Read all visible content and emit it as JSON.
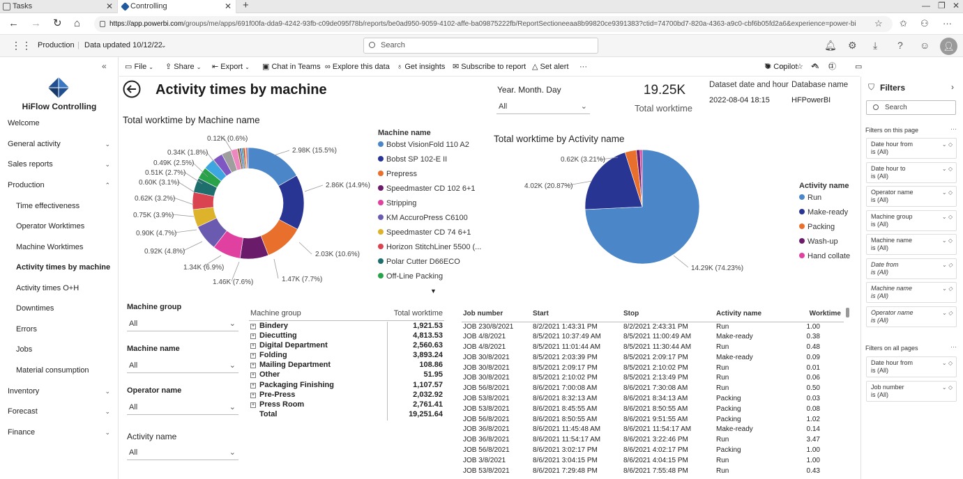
{
  "browser": {
    "tabs": [
      {
        "label": "Tasks",
        "close": "✕"
      },
      {
        "label": "Controlling",
        "close": "✕"
      }
    ],
    "new_tab": "+",
    "url_host": "https://app.powerbi.com",
    "url_path": "/groups/me/apps/691f00fa-dda9-4242-93fb-c09de095f78b/reports/be0ad950-9059-4102-affe-ba09875222fb/ReportSectioneeaa8b99820ce9391383?ctid=74700bd7-820a-4363-a9c0-cbf6b05fd2a6&experience=power-bi"
  },
  "header": {
    "workspace": "Production",
    "data_updated": "Data updated 10/12/22",
    "search_placeholder": "Search"
  },
  "sidebar": {
    "logo_text": "HiFlow Controlling",
    "items": [
      {
        "label": "Welcome"
      },
      {
        "label": "General activity",
        "chevron": "⌄"
      },
      {
        "label": "Sales reports",
        "chevron": "⌄"
      },
      {
        "label": "Production",
        "chevron": "⌃"
      },
      {
        "label": "Time effectiveness"
      },
      {
        "label": "Operator Worktimes"
      },
      {
        "label": "Machine Worktimes"
      },
      {
        "label": "Activity times by machine"
      },
      {
        "label": "Activity times O+H"
      },
      {
        "label": "Downtimes"
      },
      {
        "label": "Errors"
      },
      {
        "label": "Jobs"
      },
      {
        "label": "Material consumption"
      },
      {
        "label": "Inventory",
        "chevron": "⌄"
      },
      {
        "label": "Forecast",
        "chevron": "⌄"
      },
      {
        "label": "Finance",
        "chevron": "⌄"
      }
    ]
  },
  "toolbar": {
    "file": "File",
    "share": "Share",
    "export": "Export",
    "chat": "Chat in Teams",
    "explore": "Explore this data",
    "insights": "Get insights",
    "subscribe": "Subscribe to report",
    "alert": "Set alert",
    "more": "···",
    "copilot": "Copilot"
  },
  "report": {
    "title": "Activity times by machine",
    "date_slicer": {
      "label": "Year. Month. Day",
      "value": "All"
    },
    "kpi": {
      "value": "19.25K",
      "label": "Total worktime"
    },
    "dataset_info": {
      "headers": [
        "Dataset date and hour",
        "Database name"
      ],
      "values": [
        "2022-08-04 18:15",
        "HFPowerBI"
      ]
    },
    "donut_title": "Total worktime by Machine name",
    "donut_legend_title": "Machine name",
    "pie_title": "Total worktime by Activity name",
    "pie_legend_title": "Activity name",
    "slicers": [
      {
        "label": "Machine group",
        "value": "All"
      },
      {
        "label": "Machine name",
        "value": "All"
      },
      {
        "label": "Operator name",
        "value": "All"
      },
      {
        "label": "Activity name",
        "value": "All"
      }
    ],
    "machine_group_table": {
      "headers": [
        "Machine group",
        "Total worktime"
      ],
      "rows": [
        {
          "name": "Bindery",
          "value": "1,921.53"
        },
        {
          "name": "Diecutting",
          "value": "4,813.53"
        },
        {
          "name": "Digital Department",
          "value": "2,560.63"
        },
        {
          "name": "Folding",
          "value": "3,893.24"
        },
        {
          "name": "Mailing Department",
          "value": "108.86"
        },
        {
          "name": "Other",
          "value": "51.95"
        },
        {
          "name": "Packaging Finishing",
          "value": "1,107.57"
        },
        {
          "name": "Pre-Press",
          "value": "2,032.92"
        },
        {
          "name": "Press Room",
          "value": "2,761.41"
        }
      ],
      "total": {
        "name": "Total",
        "value": "19,251.64"
      }
    },
    "job_table": {
      "headers": [
        "Job number",
        "Start",
        "Stop",
        "Activity name",
        "Worktime"
      ],
      "rows": [
        [
          "JOB 230/8/2021",
          "8/2/2021 1:43:31 PM",
          "8/2/2021 2:43:31 PM",
          "Run",
          "1.00"
        ],
        [
          "JOB 4/8/2021",
          "8/5/2021 10:37:49 AM",
          "8/5/2021 11:00:49 AM",
          "Make-ready",
          "0.38"
        ],
        [
          "JOB 4/8/2021",
          "8/5/2021 11:01:44 AM",
          "8/5/2021 11:30:44 AM",
          "Run",
          "0.48"
        ],
        [
          "JOB 30/8/2021",
          "8/5/2021 2:03:39 PM",
          "8/5/2021 2:09:17 PM",
          "Make-ready",
          "0.09"
        ],
        [
          "JOB 30/8/2021",
          "8/5/2021 2:09:17 PM",
          "8/5/2021 2:10:02 PM",
          "Run",
          "0.01"
        ],
        [
          "JOB 30/8/2021",
          "8/5/2021 2:10:02 PM",
          "8/5/2021 2:13:49 PM",
          "Run",
          "0.06"
        ],
        [
          "JOB 56/8/2021",
          "8/6/2021 7:00:08 AM",
          "8/6/2021 7:30:08 AM",
          "Run",
          "0.50"
        ],
        [
          "JOB 53/8/2021",
          "8/6/2021 8:32:13 AM",
          "8/6/2021 8:34:13 AM",
          "Packing",
          "0.03"
        ],
        [
          "JOB 53/8/2021",
          "8/6/2021 8:45:55 AM",
          "8/6/2021 8:50:55 AM",
          "Packing",
          "0.08"
        ],
        [
          "JOB 56/8/2021",
          "8/6/2021 8:50:55 AM",
          "8/6/2021 9:51:55 AM",
          "Packing",
          "1.02"
        ],
        [
          "JOB 36/8/2021",
          "8/6/2021 11:45:48 AM",
          "8/6/2021 11:54:17 AM",
          "Make-ready",
          "0.14"
        ],
        [
          "JOB 36/8/2021",
          "8/6/2021 11:54:17 AM",
          "8/6/2021 3:22:46 PM",
          "Run",
          "3.47"
        ],
        [
          "JOB 56/8/2021",
          "8/6/2021 3:02:17 PM",
          "8/6/2021 4:02:17 PM",
          "Packing",
          "1.00"
        ],
        [
          "JOB 3/8/2021",
          "8/6/2021 3:04:15 PM",
          "8/6/2021 4:04:15 PM",
          "Run",
          "1.00"
        ],
        [
          "JOB 53/8/2021",
          "8/6/2021 7:29:48 PM",
          "8/6/2021 7:55:48 PM",
          "Run",
          "0.43"
        ]
      ]
    }
  },
  "filters": {
    "title": "Filters",
    "search_placeholder": "Search",
    "this_page_label": "Filters on this page",
    "this_page": [
      {
        "name": "Date hour from",
        "state": "is (All)",
        "italic": false
      },
      {
        "name": "Date hour to",
        "state": "is (All)",
        "italic": false
      },
      {
        "name": "Operator name",
        "state": "is (All)",
        "italic": false
      },
      {
        "name": "Machine group",
        "state": "is (All)",
        "italic": false
      },
      {
        "name": "Machine name",
        "state": "is (All)",
        "italic": false
      },
      {
        "name": "Date from",
        "state": "is (All)",
        "italic": true
      },
      {
        "name": "Machine name",
        "state": "is (All)",
        "italic": true
      },
      {
        "name": "Operator name",
        "state": "is (All)",
        "italic": true
      }
    ],
    "all_pages_label": "Filters on all pages",
    "all_pages": [
      {
        "name": "Date hour from",
        "state": "is (All)",
        "italic": false
      },
      {
        "name": "Job number",
        "state": "is (All)",
        "italic": false
      }
    ]
  },
  "chart_data": [
    {
      "type": "pie",
      "variant": "donut",
      "title": "Total worktime by Machine name",
      "legend_title": "Machine name",
      "legend": [
        "Bobst VisionFold 110 A2",
        "Bobst SP 102-E II",
        "Prepress",
        "Speedmaster CD 102 6+1",
        "Stripping",
        "KM AccuroPress C6100",
        "Speedmaster CD 74 6+1",
        "Horizon StitchLiner 5500 (...",
        "Polar Cutter D66ECO",
        "Off-Line Packing"
      ],
      "slices": [
        {
          "value": 2.98,
          "label": "2.98K (15.5%)",
          "color": "#4a86c8"
        },
        {
          "value": 2.86,
          "label": "2.86K (14.9%)",
          "color": "#283593"
        },
        {
          "value": 2.03,
          "label": "2.03K (10.6%)",
          "color": "#e86f2c"
        },
        {
          "value": 1.47,
          "label": "1.47K (7.7%)",
          "color": "#6a1b6a"
        },
        {
          "value": 1.46,
          "label": "1.46K (7.6%)",
          "color": "#e040a0"
        },
        {
          "value": 1.34,
          "label": "1.34K (6.9%)",
          "color": "#6a5ab0"
        },
        {
          "value": 0.92,
          "label": "0.92K (4.8%)",
          "color": "#dcb32a"
        },
        {
          "value": 0.9,
          "label": "0.90K (4.7%)",
          "color": "#d94450"
        },
        {
          "value": 0.75,
          "label": "0.75K (3.9%)",
          "color": "#1f6e6e"
        },
        {
          "value": 0.62,
          "label": "0.62K (3.2%)",
          "color": "#2aa24a"
        },
        {
          "value": 0.6,
          "label": "0.60K (3.1%)",
          "color": "#3da5e0"
        },
        {
          "value": 0.51,
          "label": "0.51K (2.7%)",
          "color": "#7e57c2"
        },
        {
          "value": 0.49,
          "label": "0.49K (2.5%)",
          "color": "#9e9e9e"
        },
        {
          "value": 0.34,
          "label": "0.34K (1.8%)",
          "color": "#ec87c0"
        },
        {
          "value": 0.12,
          "label": "0.12K (0.6%)",
          "color": "#8a6d3b"
        },
        {
          "value": 0.1,
          "label": "",
          "color": "#5c6bc0"
        },
        {
          "value": 0.09,
          "label": "",
          "color": "#26a69a"
        },
        {
          "value": 0.08,
          "label": "",
          "color": "#c62828"
        },
        {
          "value": 0.07,
          "label": "",
          "color": "#f9a825"
        },
        {
          "value": 0.06,
          "label": "",
          "color": "#ad1457"
        },
        {
          "value": 0.05,
          "label": "",
          "color": "#1565c0"
        }
      ]
    },
    {
      "type": "pie",
      "title": "Total worktime by Activity name",
      "legend_title": "Activity name",
      "slices": [
        {
          "name": "Run",
          "value": 14.29,
          "label": "14.29K (74.23%)",
          "color": "#4a86c8"
        },
        {
          "name": "Make-ready",
          "value": 4.02,
          "label": "4.02K (20.87%)",
          "color": "#283593"
        },
        {
          "name": "Packing",
          "value": 0.62,
          "label": "0.62K (3.21%)",
          "color": "#e86f2c"
        },
        {
          "name": "Wash-up",
          "value": 0.2,
          "label": "",
          "color": "#6a1b6a"
        },
        {
          "name": "Hand collate",
          "value": 0.12,
          "label": "",
          "color": "#e040a0"
        }
      ]
    }
  ]
}
